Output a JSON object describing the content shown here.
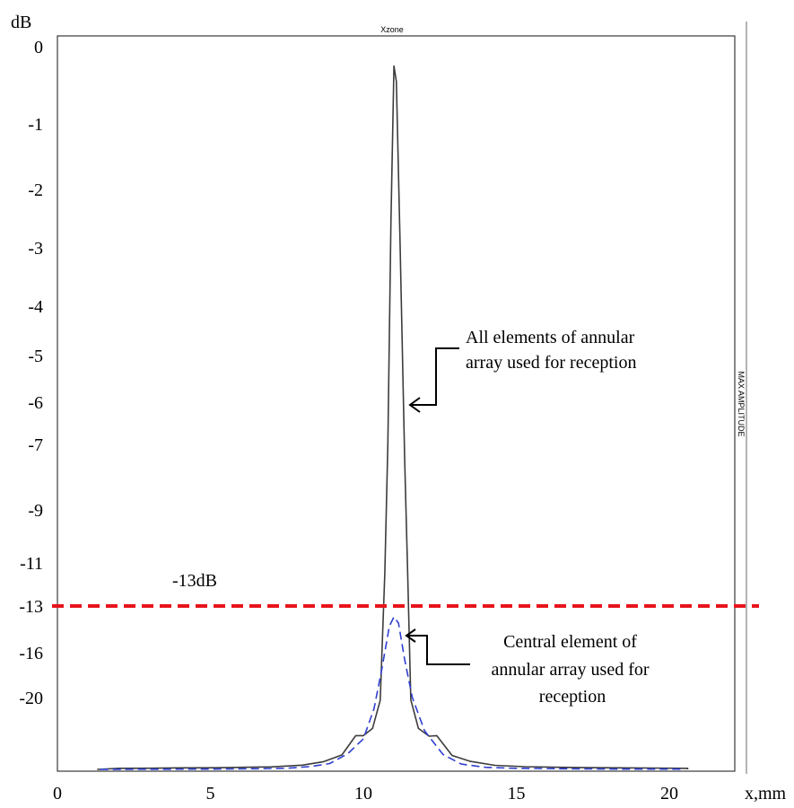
{
  "chart_data": {
    "type": "line",
    "title": "Xzone",
    "right_label": "MAX AMPLITUDE",
    "ylabel": "dB",
    "xlabel": "x,mm",
    "xlim": [
      0,
      22.2
    ],
    "x_ticks": [
      "0",
      "5",
      "10",
      "15",
      "20"
    ],
    "y_ticks": [
      "0",
      "-1",
      "-2",
      "-3",
      "-4",
      "-5",
      "-6",
      "-7",
      "-9",
      "-11",
      "-13",
      "-16",
      "-20"
    ],
    "threshold": {
      "value": -13,
      "label": "-13dB",
      "color": "#e8141c"
    },
    "series": [
      {
        "name": "All elements of annular array used for reception",
        "color": "#3c3c3c",
        "style": "solid",
        "points": [
          [
            1.3,
            -40
          ],
          [
            2,
            -39.3
          ],
          [
            3,
            -39.2
          ],
          [
            4,
            -39.0
          ],
          [
            5,
            -38.9
          ],
          [
            6,
            -38.6
          ],
          [
            7,
            -38.3
          ],
          [
            8,
            -37.2
          ],
          [
            8.7,
            -35.8
          ],
          [
            9.3,
            -33.3
          ],
          [
            9.75,
            -26.9
          ],
          [
            10.0,
            -26.9
          ],
          [
            10.3,
            -25.6
          ],
          [
            10.55,
            -20.5
          ],
          [
            10.7,
            -11.5
          ],
          [
            10.8,
            -7.0
          ],
          [
            10.9,
            -2.6
          ],
          [
            11.0,
            -0.25
          ],
          [
            11.08,
            -0.45
          ],
          [
            11.2,
            -2.9
          ],
          [
            11.35,
            -7.4
          ],
          [
            11.45,
            -11.5
          ],
          [
            11.55,
            -20.4
          ],
          [
            11.8,
            -25.6
          ],
          [
            12.15,
            -27.0
          ],
          [
            12.4,
            -26.9
          ],
          [
            12.9,
            -33.5
          ],
          [
            13.5,
            -35.7
          ],
          [
            14.3,
            -37.3
          ],
          [
            15.3,
            -38.2
          ],
          [
            16.5,
            -38.6
          ],
          [
            18,
            -38.9
          ],
          [
            19.5,
            -39.1
          ],
          [
            20.6,
            -39.3
          ],
          [
            20.6,
            -40
          ]
        ]
      },
      {
        "name": "Central element of annular array used for reception",
        "color": "#2f3fd0",
        "style": "dashed",
        "points": [
          [
            1.4,
            -40
          ],
          [
            3,
            -39.9
          ],
          [
            5,
            -39.8
          ],
          [
            6.5,
            -39.6
          ],
          [
            7.5,
            -39.2
          ],
          [
            8.3,
            -38.0
          ],
          [
            8.9,
            -36.5
          ],
          [
            9.5,
            -32.8
          ],
          [
            10.0,
            -27.9
          ],
          [
            10.35,
            -22.0
          ],
          [
            10.6,
            -17.5
          ],
          [
            10.85,
            -14.3
          ],
          [
            11.0,
            -13.7
          ],
          [
            11.15,
            -14.1
          ],
          [
            11.35,
            -16.6
          ],
          [
            11.6,
            -20.0
          ],
          [
            12.0,
            -26.0
          ],
          [
            12.6,
            -33.1
          ],
          [
            13.2,
            -36.7
          ],
          [
            14,
            -38.6
          ],
          [
            15,
            -39.3
          ],
          [
            16.5,
            -39.6
          ],
          [
            18.5,
            -39.8
          ],
          [
            20.5,
            -39.8
          ]
        ]
      }
    ],
    "annotations": [
      {
        "lines": [
          "All elements of annular",
          "array used for reception"
        ]
      },
      {
        "lines": [
          "Central element of",
          "annular array used for",
          "reception"
        ]
      }
    ]
  }
}
